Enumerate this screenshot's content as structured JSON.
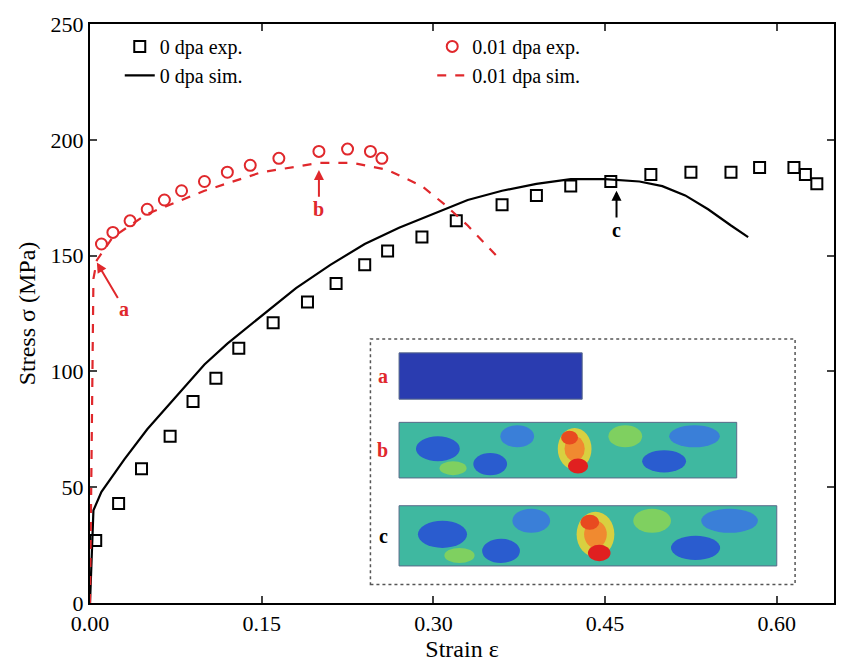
{
  "chart_data": {
    "type": "line",
    "x_label": "Strain ε",
    "y_label": "Stress σ (MPa)",
    "xlim": [
      0,
      0.65
    ],
    "xticks": [
      {
        "value": 0,
        "label": "0.00"
      },
      0.15,
      {
        "value": 0.3,
        "label": "0.30"
      },
      0.45,
      {
        "value": 0.6,
        "label": "0.60"
      }
    ],
    "ylim": [
      0,
      250
    ],
    "yticks": [
      0,
      50,
      100,
      150,
      200,
      250
    ],
    "grid": false,
    "legend": "top left",
    "series": [
      {
        "name": "0 dpa exp.",
        "type": "scatter",
        "marker": "square-open",
        "color": "#000000",
        "x": [
          0.005,
          0.025,
          0.045,
          0.07,
          0.09,
          0.11,
          0.13,
          0.16,
          0.19,
          0.215,
          0.24,
          0.26,
          0.29,
          0.32,
          0.36,
          0.39,
          0.42,
          0.455,
          0.49,
          0.525,
          0.56,
          0.585,
          0.615,
          0.625,
          0.635
        ],
        "values": [
          27,
          43,
          58,
          72,
          87,
          97,
          110,
          121,
          130,
          138,
          146,
          152,
          158,
          165,
          172,
          176,
          180,
          182,
          185,
          186,
          186,
          188,
          188,
          185,
          181
        ]
      },
      {
        "name": "0.01 dpa exp.",
        "type": "scatter",
        "marker": "circle-open",
        "color": "#e0282c",
        "x": [
          0.01,
          0.02,
          0.035,
          0.05,
          0.065,
          0.08,
          0.1,
          0.12,
          0.14,
          0.165,
          0.2,
          0.225,
          0.245,
          0.255
        ],
        "values": [
          155,
          160,
          165,
          170,
          174,
          178,
          182,
          186,
          189,
          192,
          195,
          196,
          195,
          192
        ]
      },
      {
        "name": "0 dpa sim.",
        "type": "line",
        "line_style": "solid",
        "color": "#000000",
        "x": [
          0,
          0.003,
          0.01,
          0.03,
          0.05,
          0.08,
          0.1,
          0.12,
          0.15,
          0.18,
          0.21,
          0.24,
          0.27,
          0.3,
          0.33,
          0.36,
          0.39,
          0.42,
          0.45,
          0.48,
          0.5,
          0.52,
          0.54,
          0.56,
          0.575
        ],
        "values": [
          0,
          40,
          48,
          62,
          75,
          92,
          103,
          112,
          124,
          136,
          146,
          155,
          162,
          168,
          174,
          178,
          181,
          183,
          183,
          182,
          180,
          176,
          170,
          163,
          158
        ]
      },
      {
        "name": "0.01 dpa sim.",
        "type": "line",
        "line_style": "dash",
        "color": "#e0282c",
        "x": [
          0,
          0.003,
          0.006,
          0.02,
          0.05,
          0.1,
          0.15,
          0.2,
          0.23,
          0.26,
          0.29,
          0.31,
          0.33,
          0.345,
          0.355
        ],
        "values": [
          0,
          140,
          148,
          158,
          168,
          178,
          186,
          190,
          190,
          187,
          180,
          172,
          163,
          155,
          150
        ]
      }
    ],
    "annotations": [
      {
        "text": "a",
        "x": 0.006,
        "y": 147,
        "text_x": 0.03,
        "text_y": 127,
        "color": "#e0282c"
      },
      {
        "text": "b",
        "x": 0.2,
        "y": 187,
        "text_x": 0.2,
        "text_y": 170,
        "color": "#e0282c"
      },
      {
        "text": "c",
        "x": 0.46,
        "y": 178,
        "text_x": 0.46,
        "text_y": 161,
        "color": "#000000"
      }
    ],
    "inset_labels": [
      {
        "text": "a",
        "color": "#e0282c"
      },
      {
        "text": "b",
        "color": "#e0282c"
      },
      {
        "text": "c",
        "color": "#000000"
      }
    ]
  }
}
